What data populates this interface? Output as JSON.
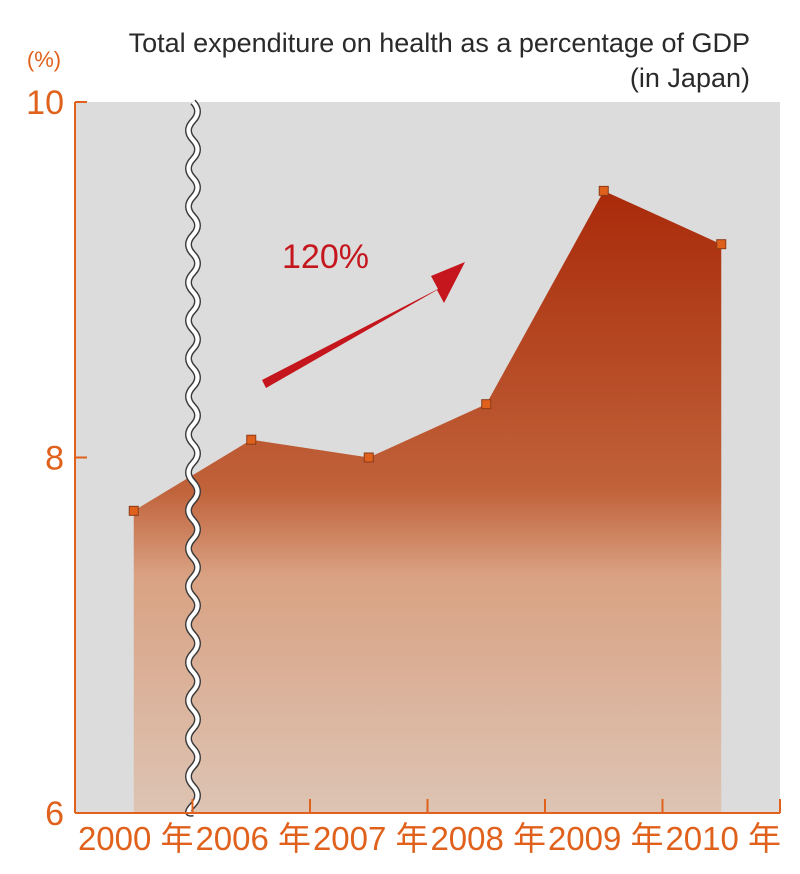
{
  "colors": {
    "accent": "#e0611c",
    "plot_background": "#dcdcdc",
    "area_top": "#a92a0a",
    "area_bottom": "#ddc4b4",
    "marker": "#e0611c",
    "arrow": "#c4161c"
  },
  "chart_data": {
    "type": "area",
    "title": "Total expenditure on health as a percentage of GDP",
    "subtitle": "(in Japan)",
    "y_unit": "(%)",
    "categories": [
      "2000 年",
      "2006 年",
      "2007 年",
      "2008 年",
      "2009 年",
      "2010 年"
    ],
    "values": [
      7.7,
      8.1,
      8.0,
      8.3,
      9.5,
      9.2
    ],
    "ylim": [
      6,
      10
    ],
    "yticks": [
      "6",
      "8",
      "10"
    ],
    "axis_break": "between 2000 and 2006",
    "annotation": {
      "text": "120%",
      "arrow": "upward trend"
    },
    "grid": false,
    "legend": "none"
  }
}
